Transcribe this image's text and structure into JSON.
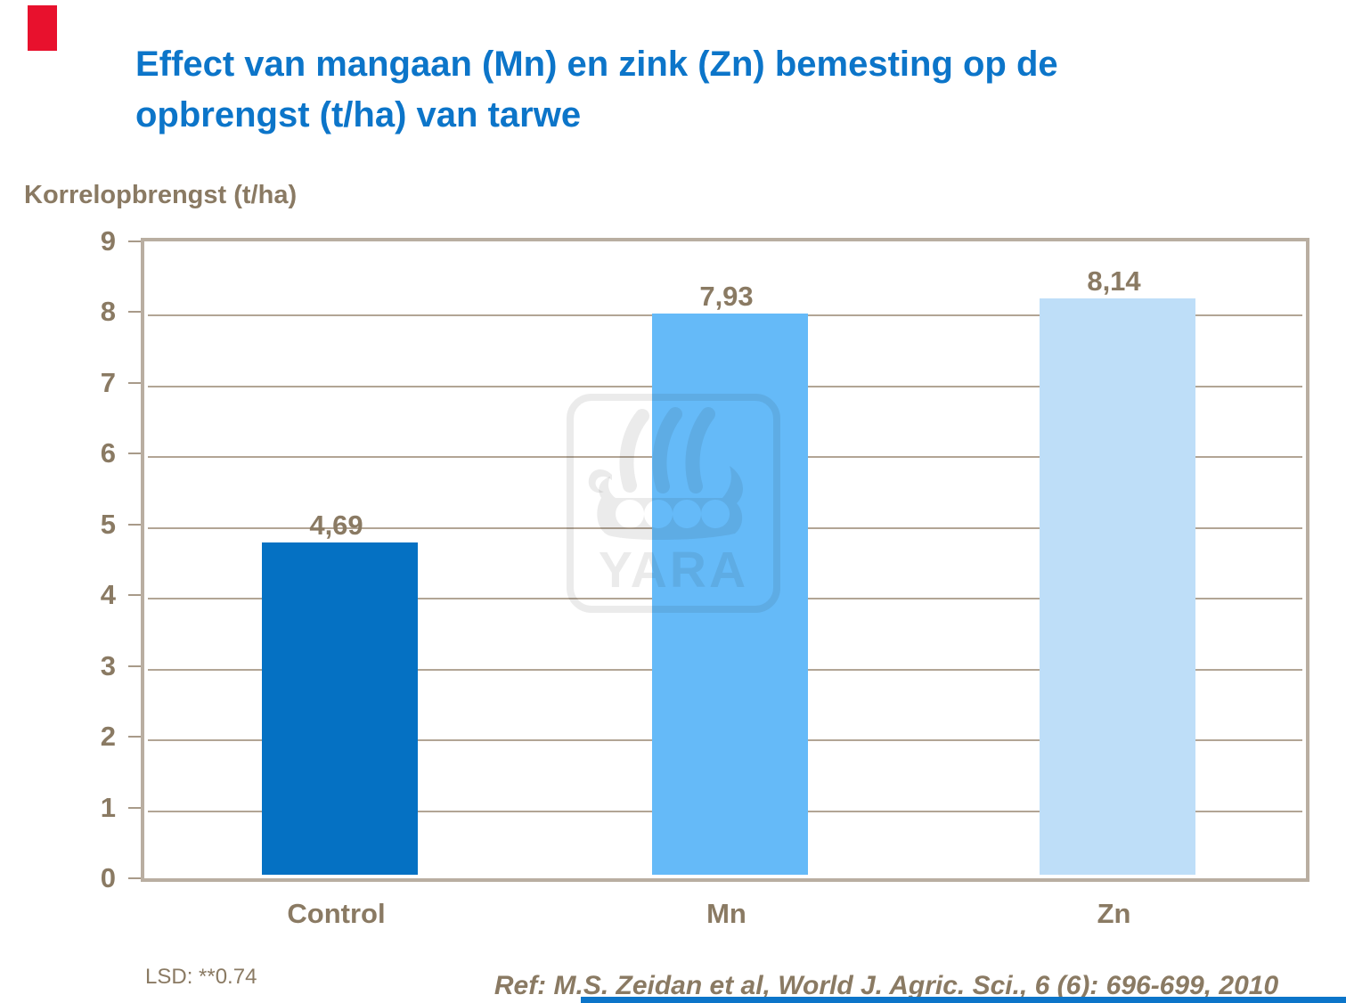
{
  "slide": {
    "title_line1": "Effect van mangaan (Mn) en zink (Zn) bemesting op de",
    "title_line2": "opbrengst (t/ha) van tarwe",
    "title_color": "#0c75c9",
    "accent_red_color": "#e8112d",
    "accent_bar_color": "#0c75c9",
    "text_color": "#8a7a63",
    "frame_color": "#b9aea1",
    "gridline_color": "#b2a595",
    "tick_color": "#a89a89"
  },
  "chart_data": {
    "type": "bar",
    "title": "Effect van mangaan (Mn) en zink (Zn) bemesting op de opbrengst (t/ha) van tarwe",
    "ylabel": "Korrelopbrengst (t/ha)",
    "xlabel": "",
    "categories": [
      "Control",
      "Mn",
      "Zn"
    ],
    "values": [
      4.69,
      7.93,
      8.14
    ],
    "value_labels": [
      "4,69",
      "7,93",
      "8,14"
    ],
    "bar_colors": [
      "#0571c3",
      "#65baf8",
      "#bedef8"
    ],
    "ylim": [
      0,
      9
    ],
    "yticks": [
      0,
      1,
      2,
      3,
      4,
      5,
      6,
      7,
      8,
      9
    ],
    "grid": "horizontal",
    "legend": "none"
  },
  "watermark": {
    "name": "yara-logo",
    "text": "YARA"
  },
  "footnotes": {
    "lsd": "LSD: **0.74",
    "ref": "Ref: M.S. Zeidan et al, World J. Agric. Sci., 6 (6): 696-699, 2010"
  }
}
